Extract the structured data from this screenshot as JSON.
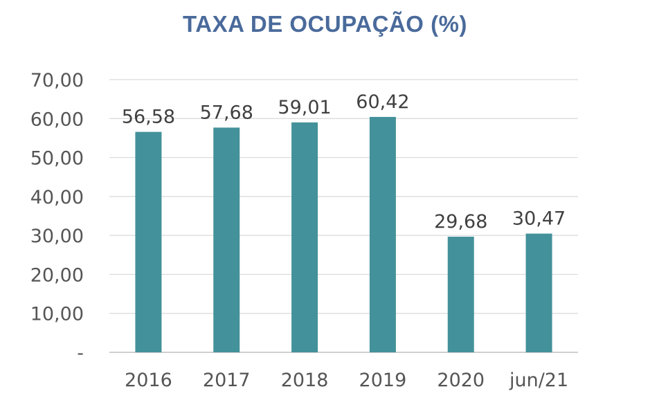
{
  "chart_data": {
    "type": "bar",
    "title": "TAXA DE OCUPAÇÃO (%)",
    "categories": [
      "2016",
      "2017",
      "2018",
      "2019",
      "2020",
      "jun/21"
    ],
    "values": [
      56.58,
      57.68,
      59.01,
      60.42,
      29.68,
      30.47
    ],
    "value_labels": [
      "56,58",
      "57,68",
      "59,01",
      "60,42",
      "29,68",
      "30,47"
    ],
    "y_ticks": [
      "-",
      "10,00",
      "20,00",
      "30,00",
      "40,00",
      "50,00",
      "60,00",
      "70,00"
    ],
    "ylim": [
      0,
      70
    ],
    "grid": true,
    "bar_color": "#43919a",
    "gridline_color": "#d9d9d9",
    "title_color": "#4a6a9b"
  }
}
